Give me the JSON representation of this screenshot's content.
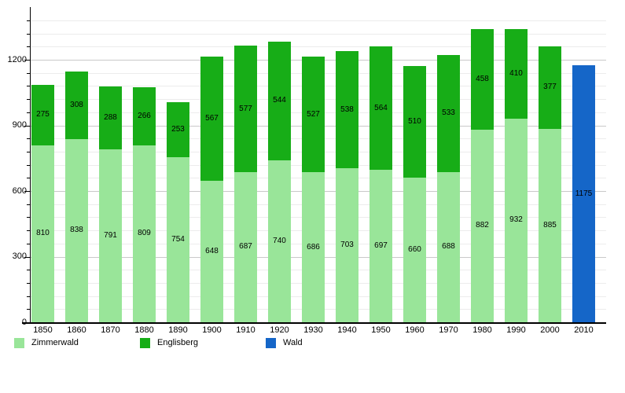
{
  "chart_data": {
    "type": "bar",
    "stacked": true,
    "title": "",
    "xlabel": "",
    "ylabel": "",
    "categories": [
      "1850",
      "1860",
      "1870",
      "1880",
      "1890",
      "1900",
      "1910",
      "1920",
      "1930",
      "1940",
      "1950",
      "1960",
      "1970",
      "1980",
      "1990",
      "2000",
      "2010"
    ],
    "series": [
      {
        "name": "Zimmerwald",
        "color": "#99e599",
        "values": [
          810,
          838,
          791,
          809,
          754,
          648,
          687,
          740,
          686,
          703,
          697,
          660,
          688,
          882,
          932,
          885,
          null
        ]
      },
      {
        "name": "Englisberg",
        "color": "#17ad17",
        "values": [
          275,
          308,
          288,
          266,
          253,
          567,
          577,
          544,
          527,
          538,
          564,
          510,
          533,
          458,
          410,
          377,
          null
        ]
      },
      {
        "name": "Wald",
        "color": "#1566c8",
        "values": [
          null,
          null,
          null,
          null,
          null,
          null,
          null,
          null,
          null,
          null,
          null,
          null,
          null,
          null,
          null,
          null,
          1175
        ]
      }
    ],
    "ylim": [
      0,
      1440
    ],
    "yticks": [
      0,
      300,
      600,
      900,
      1200
    ],
    "ytick_minor_interval": 60,
    "grid": "on",
    "gridline_minor_interval": 60,
    "gridline_major_interval": 300,
    "legend_position": "bottom",
    "axis_color": "#000000",
    "background_color": "#ffffff",
    "value_label_color": "#000000"
  }
}
